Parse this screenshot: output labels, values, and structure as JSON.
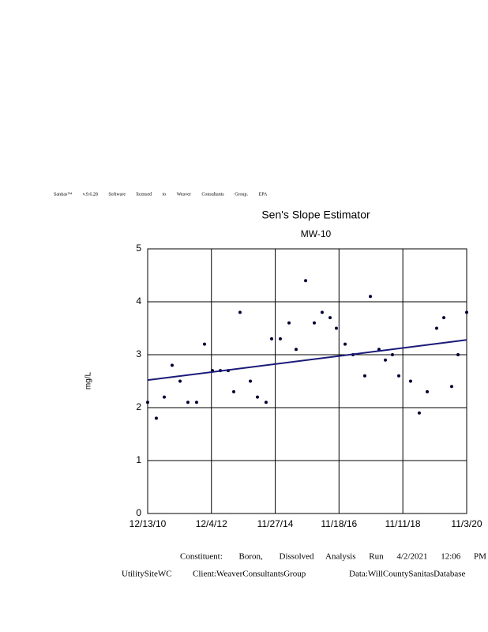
{
  "header": {
    "license": "Sanitas™ v.9.6.28 Software licensed to Weaver Consultants Group. EPA"
  },
  "chart_data": {
    "type": "scatter",
    "title": "Sen's Slope Estimator",
    "subtitle": "MW-10",
    "y_label": "mg/L",
    "x": [
      "12/13/10",
      "3/21/11",
      "6/19/11",
      "9/16/11",
      "12/15/11",
      "3/13/12",
      "6/19/12",
      "9/17/12",
      "12/15/12",
      "3/15/13",
      "6/12/13",
      "8/14/13",
      "10/24/13",
      "2/18/14",
      "5/9/14",
      "8/15/14",
      "10/17/14",
      "1/23/15",
      "5/2/15",
      "7/21/15",
      "11/6/15",
      "2/12/16",
      "5/11/16",
      "8/9/16",
      "10/19/16",
      "1/26/17",
      "4/25/17",
      "9/6/17",
      "11/8/17",
      "2/14/18",
      "4/27/18",
      "7/16/18",
      "9/26/18",
      "2/7/19",
      "5/16/19",
      "8/14/19",
      "11/29/19",
      "2/18/20",
      "5/17/20",
      "7/28/20",
      "11/3/20"
    ],
    "values": [
      2.1,
      1.8,
      2.2,
      2.8,
      2.5,
      2.1,
      2.1,
      3.2,
      2.7,
      2.7,
      2.7,
      2.3,
      3.8,
      2.5,
      2.2,
      2.1,
      3.3,
      3.3,
      3.6,
      3.1,
      4.4,
      3.6,
      3.8,
      3.7,
      3.5,
      3.2,
      3.0,
      2.6,
      4.1,
      3.1,
      2.9,
      3.0,
      2.6,
      2.5,
      1.9,
      2.3,
      3.5,
      3.7,
      2.4,
      3.0,
      3.8
    ],
    "color": "#000033",
    "trend": {
      "x": [
        "12/13/10",
        "11/3/20"
      ],
      "values": [
        2.52,
        3.28
      ],
      "color": "#1a1a7a"
    },
    "xlim": [
      "12/13/10",
      "11/3/20"
    ],
    "xticks": [
      "12/13/10",
      "12/4/12",
      "11/27/14",
      "11/18/16",
      "11/11/18",
      "11/3/20"
    ],
    "ylim": [
      0,
      5
    ],
    "yticks": [
      0,
      1,
      2,
      3,
      4,
      5
    ],
    "grid": true
  },
  "footer": {
    "constituent": "Constituent: Boron, Dissolved",
    "analysis": "Analysis Run 4/2/2021 12:06 PM",
    "site": "UtilitySiteWC",
    "client": "Client:WeaverConsultantsGroup",
    "database": "Data:WillCountySanitasDatabase"
  }
}
